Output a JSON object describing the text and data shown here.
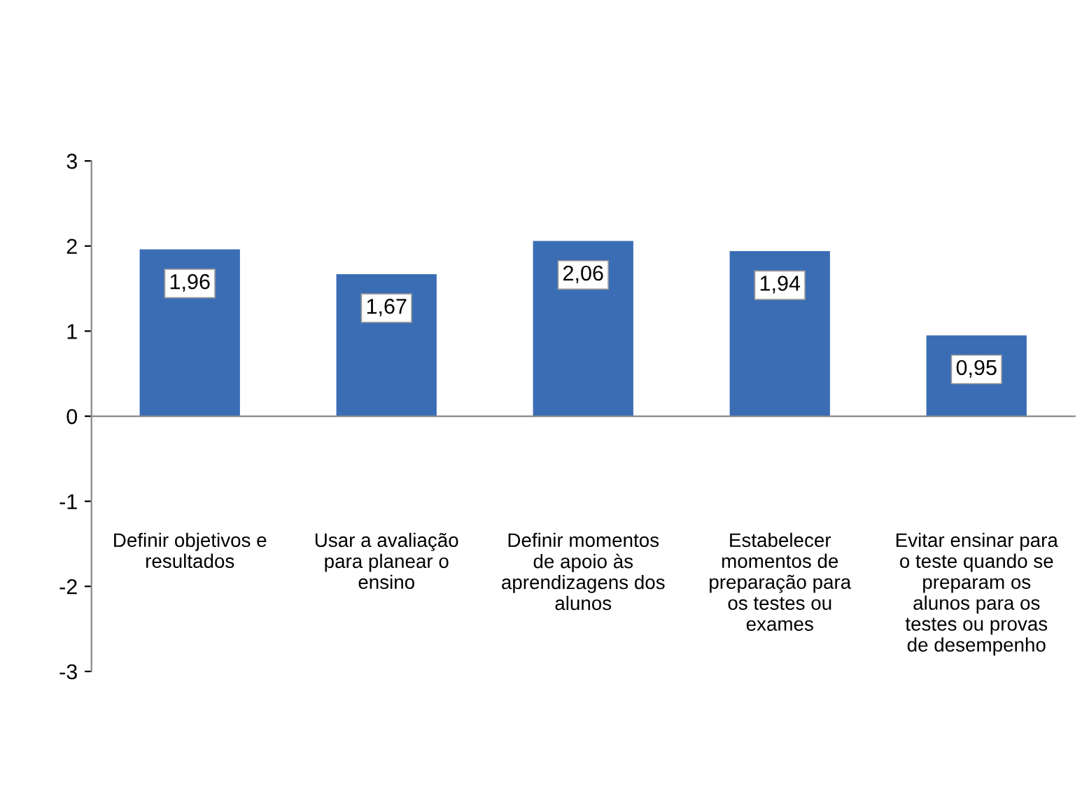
{
  "chart_data": {
    "type": "bar",
    "categories": [
      "Definir objetivos e\nresultados",
      "Usar a avaliação\npara planear o\nensino",
      "Definir momentos\nde apoio às\naprendizagens dos\nalunos",
      "Estabelecer\nmomentos de\npreparação para\nos testes ou\nexames",
      "Evitar ensinar para\no teste quando se\npreparam os\nalunos para os\ntestes ou provas\nde desempenho"
    ],
    "values": [
      1.96,
      1.67,
      2.06,
      1.94,
      0.95
    ],
    "value_labels": [
      "1,96",
      "1,67",
      "2,06",
      "1,94",
      "0,95"
    ],
    "color": "#3b6db5",
    "ylim": [
      -3,
      3
    ],
    "yticks": [
      -3,
      -2,
      -1,
      0,
      1,
      2,
      3
    ],
    "legend": false
  }
}
